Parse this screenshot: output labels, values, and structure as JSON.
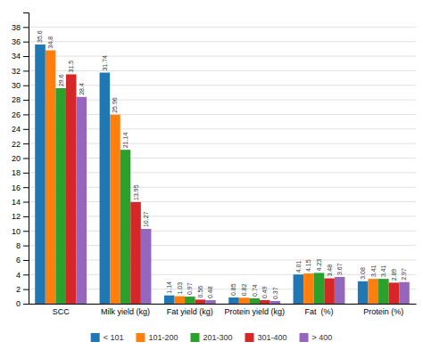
{
  "chart_data": {
    "type": "bar",
    "categories": [
      "SCC",
      "Milk yield (kg)",
      "Fat yield (kg)",
      "Protein yield (kg)",
      "Fat  (%)",
      "Protein (%)"
    ],
    "series": [
      {
        "name": "< 101",
        "values": [
          35.6,
          31.74,
          1.14,
          0.85,
          4.01,
          3.08
        ]
      },
      {
        "name": "101-200",
        "values": [
          34.8,
          25.96,
          1.03,
          0.82,
          4.15,
          3.41
        ]
      },
      {
        "name": "201-300",
        "values": [
          29.6,
          21.14,
          0.97,
          0.74,
          4.23,
          3.41
        ]
      },
      {
        "name": "301-400",
        "values": [
          31.5,
          13.95,
          0.56,
          0.49,
          3.48,
          2.89
        ]
      },
      {
        "name": "> 400",
        "values": [
          28.4,
          10.27,
          0.48,
          0.37,
          3.67,
          2.97
        ]
      }
    ],
    "ylim": [
      0,
      40
    ],
    "yticks": [
      0,
      2,
      4,
      6,
      8,
      10,
      12,
      14,
      16,
      18,
      20,
      22,
      24,
      26,
      28,
      30,
      32,
      34,
      36,
      38
    ],
    "grid": true,
    "legend": "bottom",
    "data_labels": true
  }
}
